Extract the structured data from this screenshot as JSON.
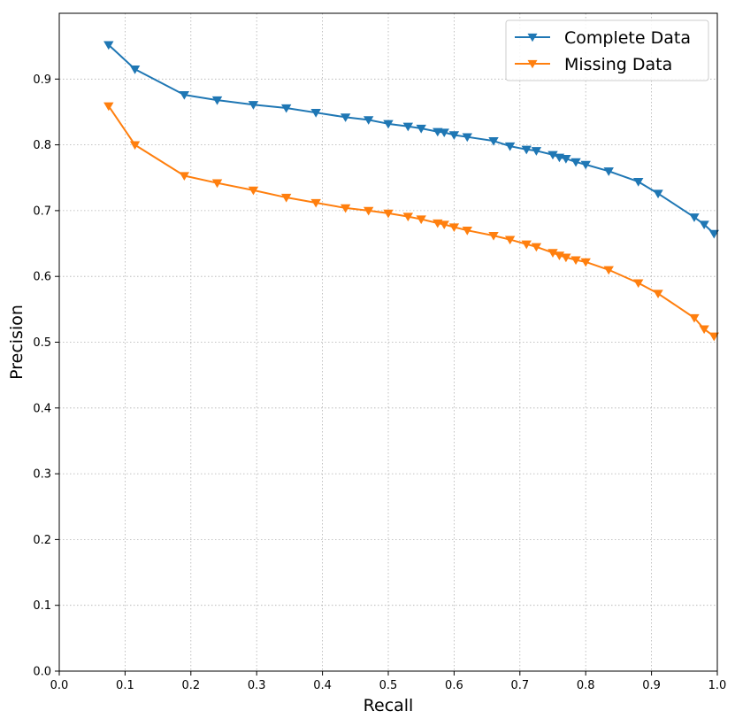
{
  "chart_data": {
    "type": "line",
    "title": "",
    "xlabel": "Recall",
    "ylabel": "Precision",
    "xlim": [
      0.0,
      1.0
    ],
    "ylim": [
      0.0,
      1.0
    ],
    "xticks": [
      "0.0",
      "0.1",
      "0.2",
      "0.3",
      "0.4",
      "0.5",
      "0.6",
      "0.7",
      "0.8",
      "0.9",
      "1.0"
    ],
    "yticks": [
      "0.0",
      "0.1",
      "0.2",
      "0.3",
      "0.4",
      "0.5",
      "0.6",
      "0.7",
      "0.8",
      "0.9"
    ],
    "grid": true,
    "grid_style": "dotted",
    "legend_position": "upper right",
    "marker": "triangle-down",
    "series": [
      {
        "name": "Complete Data",
        "color": "#1f77b4",
        "x": [
          0.075,
          0.115,
          0.19,
          0.24,
          0.295,
          0.345,
          0.39,
          0.435,
          0.47,
          0.5,
          0.53,
          0.55,
          0.575,
          0.585,
          0.6,
          0.62,
          0.66,
          0.685,
          0.71,
          0.725,
          0.75,
          0.76,
          0.77,
          0.785,
          0.8,
          0.835,
          0.88,
          0.91,
          0.965,
          0.98,
          0.995
        ],
        "y": [
          0.952,
          0.915,
          0.876,
          0.868,
          0.861,
          0.856,
          0.849,
          0.842,
          0.838,
          0.832,
          0.828,
          0.825,
          0.82,
          0.819,
          0.815,
          0.812,
          0.806,
          0.798,
          0.793,
          0.791,
          0.785,
          0.781,
          0.779,
          0.774,
          0.77,
          0.76,
          0.744,
          0.726,
          0.69,
          0.679,
          0.665
        ]
      },
      {
        "name": "Missing Data",
        "color": "#ff7f0e",
        "x": [
          0.075,
          0.115,
          0.19,
          0.24,
          0.295,
          0.345,
          0.39,
          0.435,
          0.47,
          0.5,
          0.53,
          0.55,
          0.575,
          0.585,
          0.6,
          0.62,
          0.66,
          0.685,
          0.71,
          0.725,
          0.75,
          0.76,
          0.77,
          0.785,
          0.8,
          0.835,
          0.88,
          0.91,
          0.965,
          0.98,
          0.995
        ],
        "y": [
          0.859,
          0.8,
          0.753,
          0.742,
          0.731,
          0.72,
          0.712,
          0.704,
          0.7,
          0.696,
          0.691,
          0.687,
          0.681,
          0.679,
          0.675,
          0.67,
          0.662,
          0.656,
          0.649,
          0.645,
          0.636,
          0.632,
          0.629,
          0.625,
          0.622,
          0.61,
          0.59,
          0.574,
          0.537,
          0.52,
          0.509
        ]
      }
    ]
  }
}
